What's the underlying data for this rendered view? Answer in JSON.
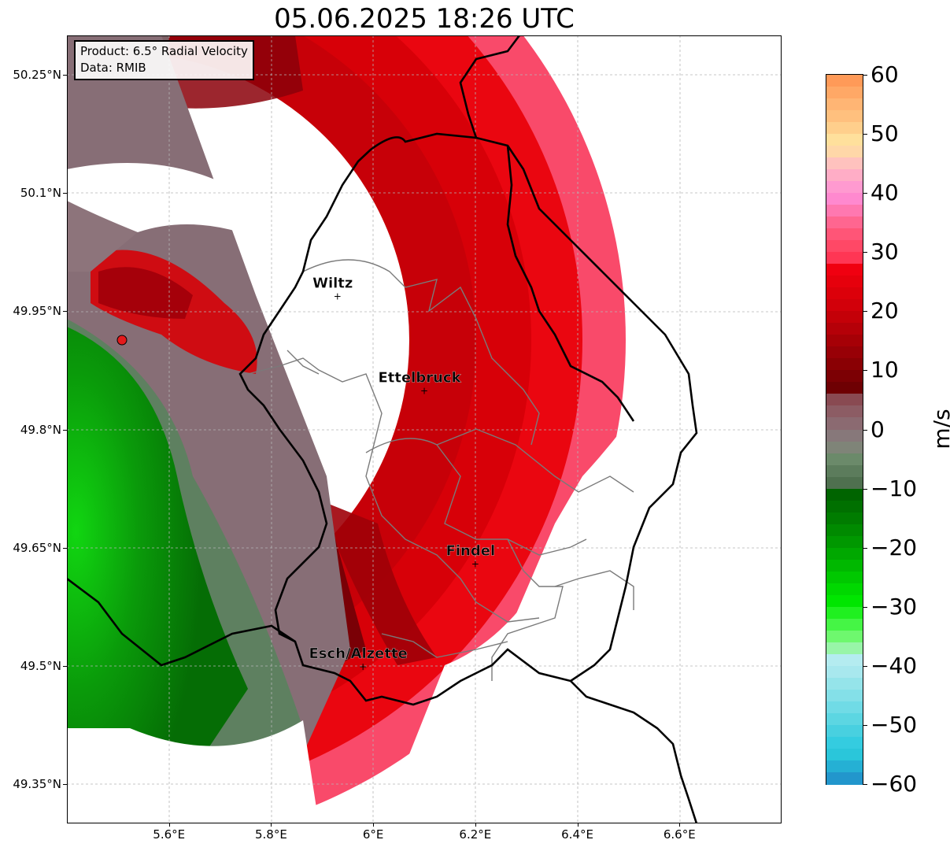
{
  "title": "05.06.2025 18:26 UTC",
  "info_box": {
    "product": "Product: 6.5° Radial Velocity",
    "source": "Data: RMIB"
  },
  "axes": {
    "y_ticks": [
      "50.25°N",
      "50.1°N",
      "49.95°N",
      "49.8°N",
      "49.65°N",
      "49.5°N",
      "49.35°N"
    ],
    "x_ticks": [
      "5.6°E",
      "5.8°E",
      "6°E",
      "6.2°E",
      "6.4°E",
      "6.6°E"
    ],
    "lon_range": [
      5.4,
      6.8
    ],
    "lat_range": [
      49.3,
      50.3
    ],
    "grid": "dashed"
  },
  "cities": [
    {
      "name": "Wiltz",
      "lon": 5.93,
      "lat": 49.97
    },
    {
      "name": "Ettelbruck",
      "lon": 6.1,
      "lat": 49.85
    },
    {
      "name": "Findel",
      "lon": 6.2,
      "lat": 49.63
    },
    {
      "name": "Esch/Alzette",
      "lon": 5.98,
      "lat": 49.5
    }
  ],
  "radar_site": {
    "lon": 5.505,
    "lat": 49.914,
    "color": "#e31a1c"
  },
  "colorbar": {
    "unit": "m/s",
    "min": -60,
    "max": 60,
    "tick_labels": [
      "60",
      "50",
      "40",
      "30",
      "20",
      "10",
      "0",
      "−10",
      "−20",
      "−30",
      "−40",
      "−50",
      "−60"
    ]
  },
  "colors": {
    "approaching_green": "#0bb80b",
    "receding_red": "#d40000",
    "high_red_pink": "#f94c6b",
    "neutral_gray": "#8a6f76",
    "border": "#000000",
    "inner_border": "#7a7a7a"
  }
}
